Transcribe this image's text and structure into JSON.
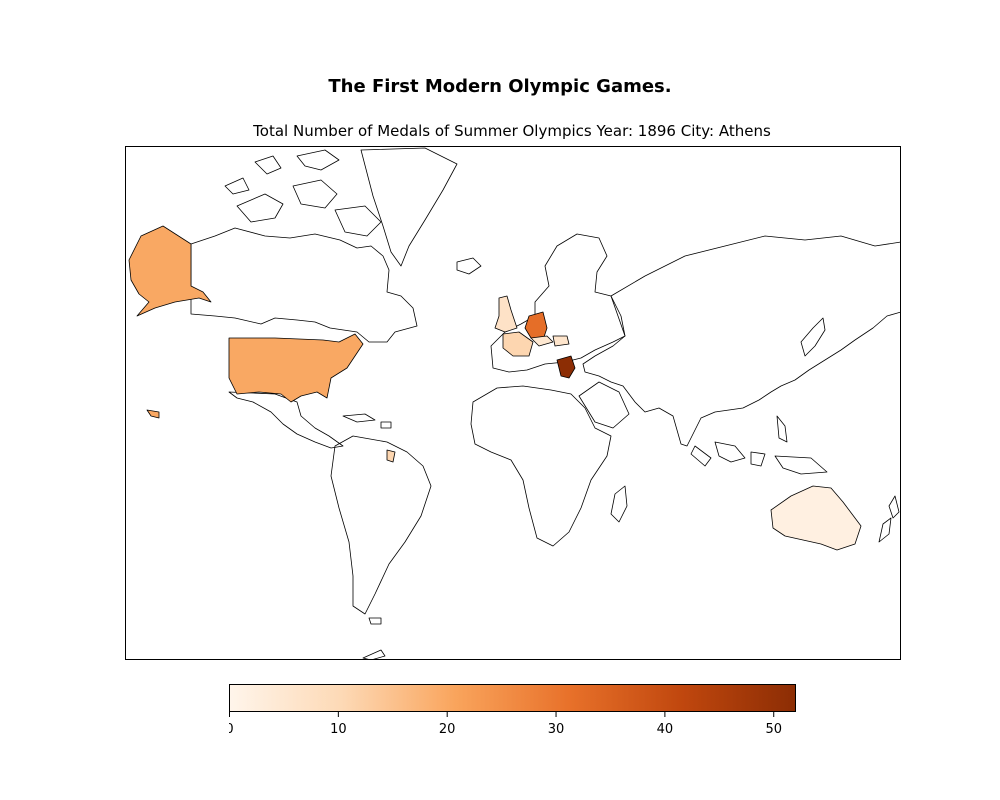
{
  "header": {
    "title": "The First Modern Olympic Games.",
    "subtitle": "Total Number of Medals of Summer Olympics  Year: 1896  City: Athens"
  },
  "colorbar": {
    "min": 0,
    "max": 52,
    "ticks": [
      0,
      10,
      20,
      30,
      40,
      50
    ],
    "colors": [
      "#fff5eb",
      "#fdd9b5",
      "#f9a45c",
      "#e8712a",
      "#c0470e",
      "#8c2d04"
    ]
  },
  "chart_data": {
    "type": "choropleth",
    "projection": "mercator",
    "regions": [
      {
        "region": "Greece",
        "value": 52
      },
      {
        "region": "Germany",
        "value": 32
      },
      {
        "region": "United States",
        "value": 20
      },
      {
        "region": "France",
        "value": 11
      },
      {
        "region": "United Kingdom",
        "value": 7
      },
      {
        "region": "Hungary",
        "value": 6
      },
      {
        "region": "Austria",
        "value": 5
      },
      {
        "region": "Australia",
        "value": 2
      }
    ]
  }
}
